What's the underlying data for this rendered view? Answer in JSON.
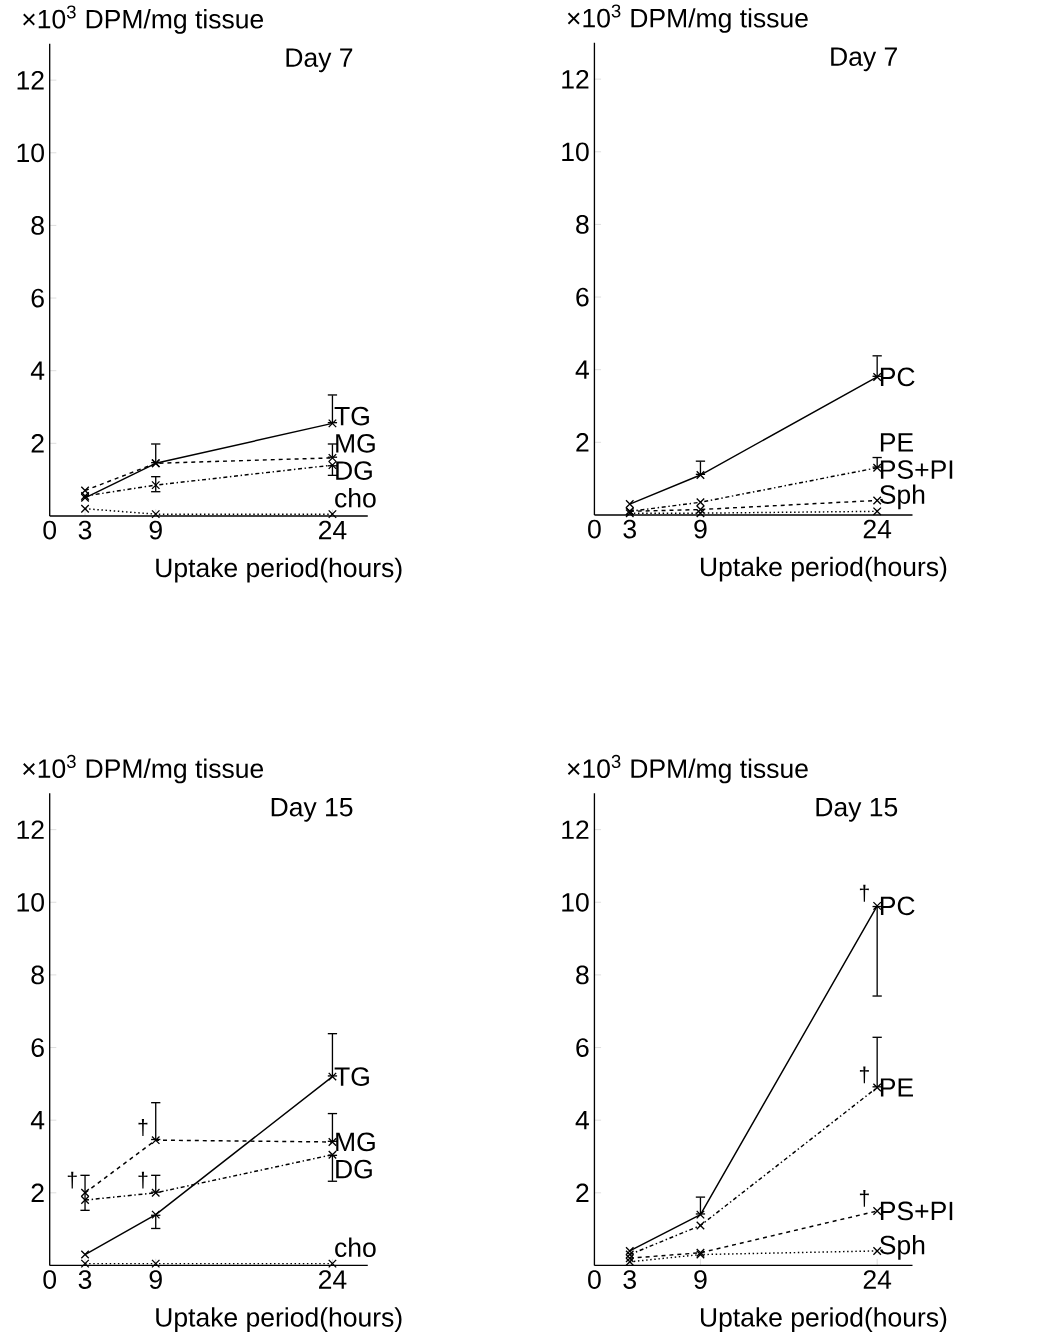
{
  "chart_data": [
    {
      "type": "line",
      "title": "Day 7",
      "ylabel": "×10$^{3}$ DPM/mg tissue",
      "xlabel": "Uptake period(hours)",
      "x": [
        3,
        9,
        24
      ],
      "xlim": [
        0,
        27
      ],
      "ylim": [
        0,
        13
      ],
      "xticks": [
        0,
        3,
        9,
        24
      ],
      "yticks": [
        2,
        4,
        6,
        8,
        10,
        12
      ],
      "marker": "cross",
      "series": [
        {
          "name": "TG",
          "color": "#000000",
          "line_style": "solid",
          "values": [
            0.5,
            1.45,
            2.55
          ],
          "errors": [
            null,
            [
              1.45,
              2.0
            ],
            [
              2.55,
              3.35
            ]
          ]
        },
        {
          "name": "MG",
          "color": "#000000",
          "line_style": "dashed",
          "values": [
            0.7,
            1.45,
            1.6
          ],
          "errors": [
            null,
            null,
            [
              1.6,
              2.0
            ]
          ]
        },
        {
          "name": "DG",
          "color": "#000000",
          "line_style": "dashdot",
          "values": [
            0.55,
            0.85,
            1.4
          ],
          "errors": [
            null,
            [
              0.65,
              1.1
            ],
            [
              1.1,
              1.4
            ]
          ]
        },
        {
          "name": "cho",
          "color": "#000000",
          "line_style": "dotted",
          "values": [
            0.2,
            0.05,
            0.05
          ]
        }
      ]
    },
    {
      "type": "line",
      "title": "Day 7",
      "ylabel": "×10$^{3}$ DPM/mg tissue",
      "xlabel": "Uptake period(hours)",
      "x": [
        3,
        9,
        24
      ],
      "xlim": [
        0,
        27
      ],
      "ylim": [
        0,
        13
      ],
      "xticks": [
        0,
        3,
        9,
        24
      ],
      "yticks": [
        2,
        4,
        6,
        8,
        10,
        12
      ],
      "marker": "cross",
      "series": [
        {
          "name": "PC",
          "color": "#000000",
          "line_style": "solid",
          "values": [
            0.3,
            1.1,
            3.8
          ],
          "errors": [
            null,
            [
              1.1,
              1.5
            ],
            [
              3.8,
              4.4
            ]
          ]
        },
        {
          "name": "PE",
          "color": "#000000",
          "line_style": "dashdot",
          "values": [
            0.1,
            0.35,
            1.3
          ],
          "errors": [
            null,
            null,
            [
              1.3,
              1.6
            ]
          ]
        },
        {
          "name": "PS+PI",
          "color": "#000000",
          "line_style": "dashed",
          "values": [
            0.1,
            0.15,
            0.4
          ]
        },
        {
          "name": "Sph",
          "color": "#000000",
          "line_style": "dotted",
          "values": [
            0.05,
            0.05,
            0.1
          ]
        }
      ]
    },
    {
      "type": "line",
      "title": "Day 15",
      "ylabel": "×10$^{3}$ DPM/mg tissue",
      "xlabel": "Uptake period(hours)",
      "x": [
        3,
        9,
        24
      ],
      "xlim": [
        0,
        27
      ],
      "ylim": [
        0,
        13
      ],
      "xticks": [
        0,
        3,
        9,
        24
      ],
      "yticks": [
        2,
        4,
        6,
        8,
        10,
        12
      ],
      "marker": "cross",
      "series": [
        {
          "name": "TG",
          "color": "#000000",
          "line_style": "solid",
          "values": [
            0.3,
            1.4,
            5.2
          ],
          "errors": [
            null,
            [
              1.0,
              1.4
            ],
            [
              5.2,
              6.4
            ]
          ]
        },
        {
          "name": "MG",
          "color": "#000000",
          "line_style": "dashed",
          "values": [
            2.0,
            3.45,
            3.4
          ],
          "errors": [
            [
              1.5,
              2.5
            ],
            [
              3.45,
              4.5
            ],
            [
              3.4,
              4.2
            ]
          ]
        },
        {
          "name": "DG",
          "color": "#000000",
          "line_style": "dashdot",
          "values": [
            1.8,
            2.0,
            3.05
          ],
          "errors": [
            null,
            [
              2.0,
              2.5
            ],
            [
              2.3,
              3.05
            ]
          ]
        },
        {
          "name": "cho",
          "color": "#000000",
          "line_style": "dotted",
          "values": [
            0.05,
            0.05,
            0.05
          ]
        }
      ],
      "annotations": [
        "†",
        "†",
        "†"
      ]
    },
    {
      "type": "line",
      "title": "Day 15",
      "ylabel": "×10$^{3}$ DPM/mg tissue",
      "xlabel": "Uptake period(hours)",
      "x": [
        3,
        9,
        24
      ],
      "xlim": [
        0,
        27
      ],
      "ylim": [
        0,
        13
      ],
      "xticks": [
        0,
        3,
        9,
        24
      ],
      "yticks": [
        2,
        4,
        6,
        8,
        10,
        12
      ],
      "marker": "cross",
      "series": [
        {
          "name": "PC",
          "color": "#000000",
          "line_style": "solid",
          "values": [
            0.4,
            1.4,
            9.9
          ],
          "errors": [
            null,
            [
              1.4,
              1.9
            ],
            [
              7.4,
              9.9
            ]
          ]
        },
        {
          "name": "PE",
          "color": "#000000",
          "line_style": "dashdot",
          "values": [
            0.3,
            1.1,
            4.9
          ],
          "errors": [
            null,
            null,
            [
              4.9,
              6.3
            ]
          ]
        },
        {
          "name": "PS+PI",
          "color": "#000000",
          "line_style": "dashed",
          "values": [
            0.2,
            0.35,
            1.5
          ]
        },
        {
          "name": "Sph",
          "color": "#000000",
          "line_style": "dotted",
          "values": [
            0.1,
            0.3,
            0.4
          ]
        }
      ],
      "annotations": [
        "†",
        "†",
        "†"
      ]
    }
  ]
}
